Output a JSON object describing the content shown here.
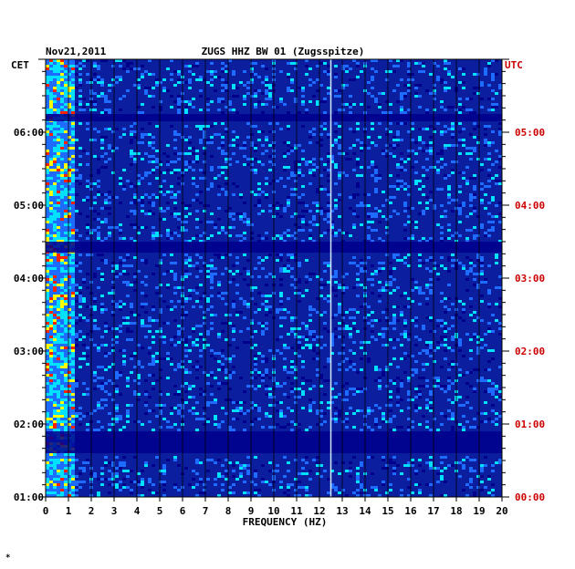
{
  "chart_data": {
    "type": "heatmap",
    "title": "ZUGS HHZ BW 01 (Zugsspitze)",
    "date": "Nov21,2011",
    "left_tz_label": "CET",
    "right_tz_label": "UTC",
    "xlabel": "FREQUENCY (HZ)",
    "xlim": [
      0,
      20
    ],
    "x_ticks": [
      "0",
      "1",
      "2",
      "3",
      "4",
      "5",
      "6",
      "7",
      "8",
      "9",
      "10",
      "11",
      "12",
      "13",
      "14",
      "15",
      "16",
      "17",
      "18",
      "19",
      "20"
    ],
    "y_ticks_left": [
      "06:00",
      "05:00",
      "04:00",
      "03:00",
      "02:00",
      "01:00"
    ],
    "y_ticks_right": [
      "05:00",
      "04:00",
      "03:00",
      "02:00",
      "01:00",
      "00:00"
    ],
    "ylim_hours_cet": [
      1.0,
      7.0
    ],
    "grid": true,
    "colors": {
      "background": "#0b1f9e",
      "low": "#00008c",
      "mid": "#1e6bff",
      "high": "#00e0ff",
      "peak": "#ffff00",
      "max": "#ff2000",
      "right_axis": "#cc0000"
    },
    "features": {
      "persistent_line_hz": 12.5,
      "low_freq_energy_band_hz": [
        0,
        1.2
      ],
      "quiet_band_hours_cet": [
        [
          1.6,
          1.9
        ],
        [
          4.35,
          4.5
        ],
        [
          6.15,
          6.25
        ]
      ]
    },
    "footer_mark": "*"
  }
}
